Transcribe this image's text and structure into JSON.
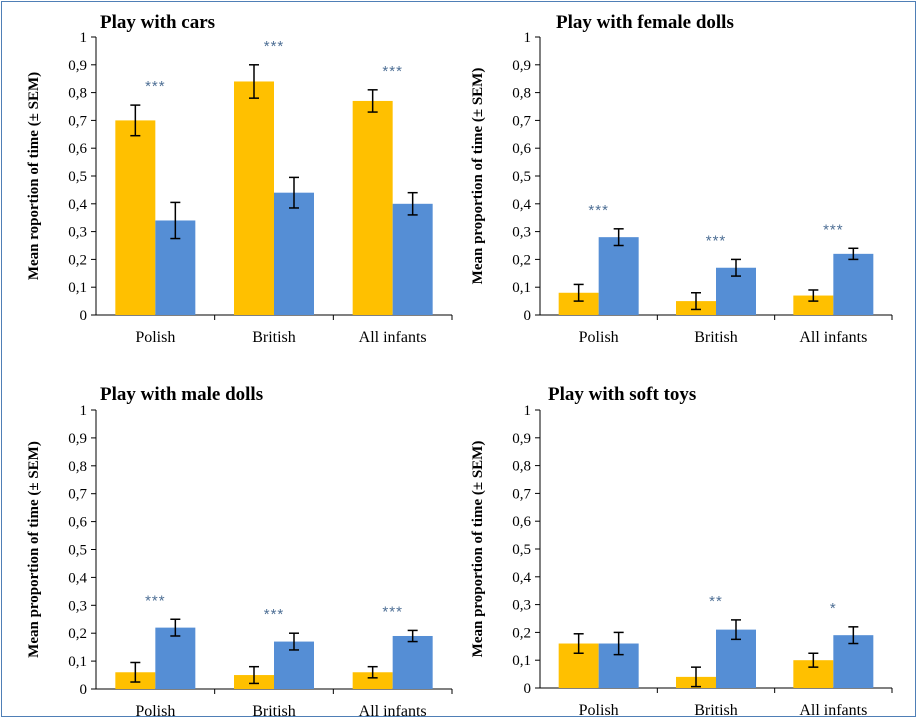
{
  "colors": {
    "series_a": "#ffc000",
    "series_b": "#558ed5",
    "axis": "#000000",
    "significance": "#4e6f95"
  },
  "chart_data": [
    {
      "type": "bar",
      "title": "Play with cars",
      "ylabel": "Mean roportion of time (± SEM)",
      "ylim": [
        0,
        1
      ],
      "yticks": [
        "0",
        "0,1",
        "0,2",
        "0,3",
        "0,4",
        "0,5",
        "0,6",
        "0,7",
        "0,8",
        "0,9",
        "1"
      ],
      "categories": [
        "Polish",
        "British",
        "All infants"
      ],
      "series": [
        {
          "values": [
            0.7,
            0.84,
            0.77
          ],
          "errors": [
            0.055,
            0.06,
            0.04
          ]
        },
        {
          "values": [
            0.34,
            0.44,
            0.4
          ],
          "errors": [
            0.065,
            0.055,
            0.04
          ]
        }
      ],
      "significance": [
        "***",
        "***",
        "***"
      ]
    },
    {
      "type": "bar",
      "title": "Play with female dolls",
      "ylabel": "Mean proportion of time (± SEM)",
      "ylim": [
        0,
        1
      ],
      "yticks": [
        "0",
        "0,1",
        "0,2",
        "0,3",
        "0,4",
        "0,5",
        "0,6",
        "0,7",
        "0,8",
        "0,9",
        "1"
      ],
      "categories": [
        "Polish",
        "British",
        "All infants"
      ],
      "series": [
        {
          "values": [
            0.08,
            0.05,
            0.07
          ],
          "errors": [
            0.03,
            0.03,
            0.02
          ]
        },
        {
          "values": [
            0.28,
            0.17,
            0.22
          ],
          "errors": [
            0.03,
            0.03,
            0.02
          ]
        }
      ],
      "significance": [
        "***",
        "***",
        "***"
      ]
    },
    {
      "type": "bar",
      "title": "Play with male dolls",
      "ylabel": "Mean proportion of time (± SEM)",
      "ylim": [
        0,
        1
      ],
      "yticks": [
        "0",
        "0,1",
        "0,2",
        "0,3",
        "0,4",
        "0,5",
        "0,6",
        "0,7",
        "0,8",
        "0,9",
        "1"
      ],
      "categories": [
        "Polish",
        "British",
        "All infants"
      ],
      "series": [
        {
          "values": [
            0.06,
            0.05,
            0.06
          ],
          "errors": [
            0.035,
            0.03,
            0.02
          ]
        },
        {
          "values": [
            0.22,
            0.17,
            0.19
          ],
          "errors": [
            0.03,
            0.03,
            0.02
          ]
        }
      ],
      "significance": [
        "***",
        "***",
        "***"
      ]
    },
    {
      "type": "bar",
      "title": "Play with soft toys",
      "ylabel": "Mean proportion of time (± SEM)",
      "ylim": [
        0,
        1
      ],
      "yticks": [
        "0",
        "0,1",
        "0,2",
        "0,3",
        "0,4",
        "0,5",
        "0,6",
        "0,7",
        "0,8",
        "0,9",
        "1"
      ],
      "categories": [
        "Polish",
        "British",
        "All infants"
      ],
      "series": [
        {
          "values": [
            0.16,
            0.04,
            0.1
          ],
          "errors": [
            0.035,
            0.035,
            0.025
          ]
        },
        {
          "values": [
            0.16,
            0.21,
            0.19
          ],
          "errors": [
            0.04,
            0.035,
            0.03
          ]
        }
      ],
      "significance": [
        "",
        "**",
        "*"
      ]
    }
  ]
}
